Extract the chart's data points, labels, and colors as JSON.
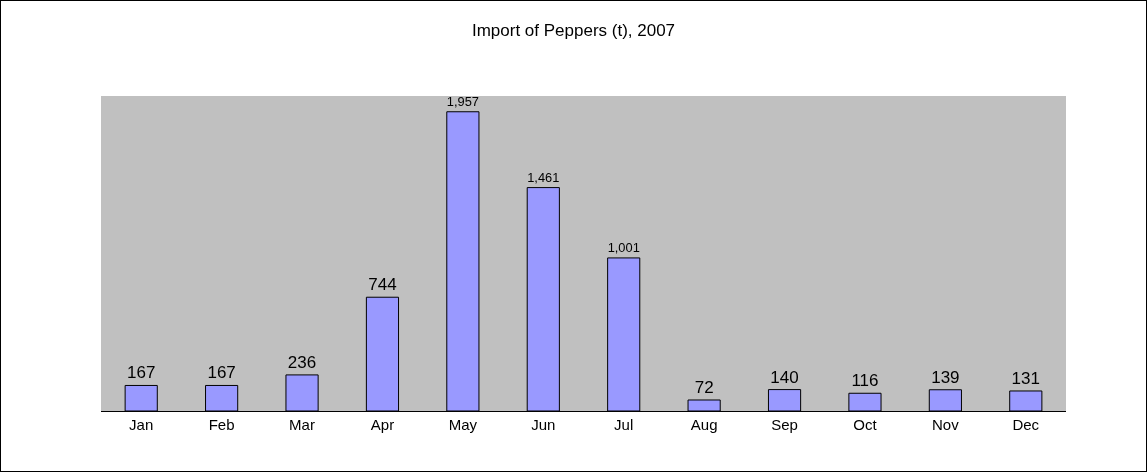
{
  "chart_data": {
    "type": "bar",
    "title": "Import of Peppers (t), 2007",
    "categories": [
      "Jan",
      "Feb",
      "Mar",
      "Apr",
      "May",
      "Jun",
      "Jul",
      "Aug",
      "Sep",
      "Oct",
      "Nov",
      "Dec"
    ],
    "values": [
      167,
      167,
      236,
      744,
      1957,
      1461,
      1001,
      72,
      140,
      116,
      139,
      131
    ],
    "value_labels": [
      "167",
      "167",
      "236",
      "744",
      "1,957",
      "1,461",
      "1,001",
      "72",
      "140",
      "116",
      "139",
      "131"
    ],
    "color": "#9999ff",
    "grid": false,
    "legend": false
  }
}
